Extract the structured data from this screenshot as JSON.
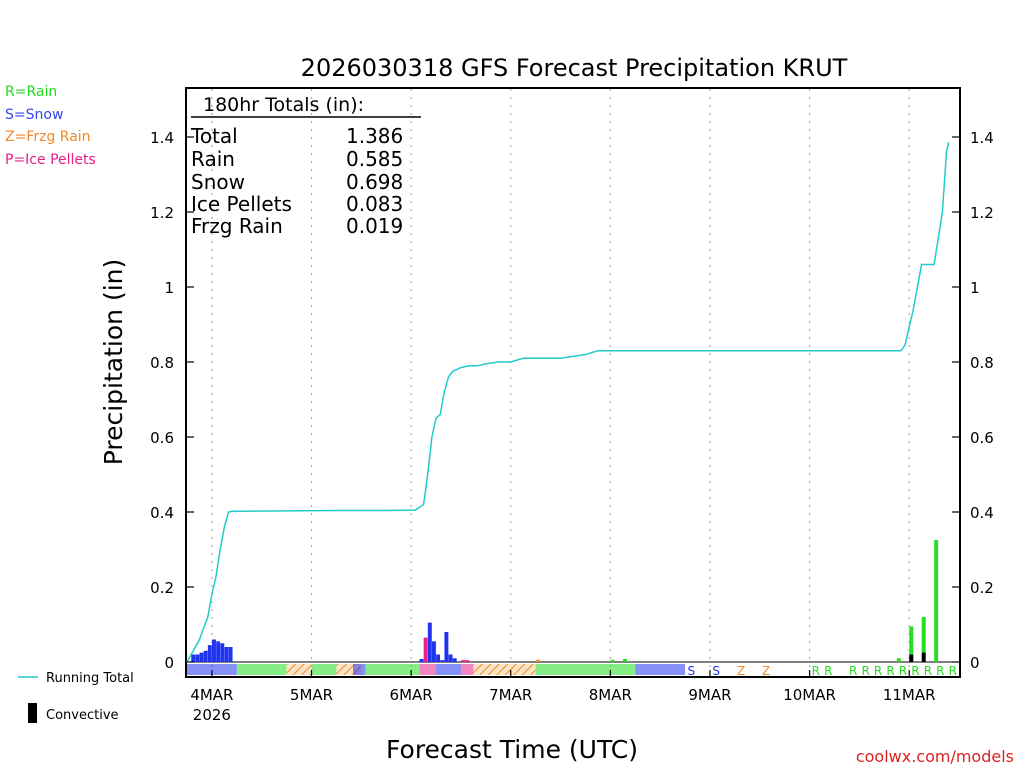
{
  "chart_data": {
    "type": "bar+line",
    "title": "2026030318 GFS Forecast Precipitation KRUT",
    "xlabel": "Forecast Time (UTC)",
    "ylabel": "Precipitation (in)",
    "ylim": [
      0,
      1.53
    ],
    "yticks": [
      0,
      0.2,
      0.4,
      0.6,
      0.8,
      1,
      1.2,
      1.4
    ],
    "ytick_labels": [
      "0",
      "0.2",
      "0.4",
      "0.6",
      "0.8",
      "1",
      "1.2",
      "1.4"
    ],
    "xlim_hours": [
      0,
      186
    ],
    "day_hours": [
      6,
      30,
      54,
      78,
      102,
      126,
      150,
      174
    ],
    "day_labels": [
      "4MAR",
      "5MAR",
      "6MAR",
      "7MAR",
      "8MAR",
      "9MAR",
      "10MAR",
      "11MAR"
    ],
    "year_label": "2026",
    "totals_box": {
      "header": "180hr Totals (in):",
      "rows": [
        {
          "label": "Total",
          "value": "1.386"
        },
        {
          "label": "Rain",
          "value": "0.585"
        },
        {
          "label": "Snow",
          "value": "0.698"
        },
        {
          "label": "Ice Pellets",
          "value": "0.083"
        },
        {
          "label": "Frzg Rain",
          "value": "0.019"
        }
      ]
    },
    "type_legend": [
      {
        "text": "R=Rain",
        "color": "#22dd22"
      },
      {
        "text": "S=Snow",
        "color": "#3344ee"
      },
      {
        "text": "Z=Frzg Rain",
        "color": "#f08a24"
      },
      {
        "text": "P=Ice Pellets",
        "color": "#e8208a"
      }
    ],
    "series_legend": {
      "running_total": "Running Total",
      "convective": "Convective"
    },
    "colors": {
      "rain": "#22dd22",
      "snow": "#2233ee",
      "frzg": "#f08a24",
      "pellets": "#e8208a",
      "total": "#22cccc",
      "convective": "#000000"
    },
    "running_total": {
      "hours": [
        0,
        1,
        2,
        3,
        4,
        5,
        6,
        7,
        8,
        9,
        10,
        11,
        12,
        24,
        36,
        48,
        55,
        57,
        58,
        59,
        60,
        61,
        62,
        63,
        64,
        66,
        68,
        70,
        72,
        75,
        78,
        81,
        84,
        90,
        96,
        99,
        102,
        105,
        150,
        172,
        173,
        175,
        177,
        180,
        182,
        183,
        183.5
      ],
      "values": [
        0.0,
        0.02,
        0.04,
        0.06,
        0.09,
        0.12,
        0.18,
        0.23,
        0.3,
        0.36,
        0.4,
        0.402,
        0.402,
        0.403,
        0.404,
        0.404,
        0.405,
        0.42,
        0.5,
        0.6,
        0.65,
        0.66,
        0.72,
        0.76,
        0.775,
        0.785,
        0.79,
        0.79,
        0.795,
        0.8,
        0.8,
        0.81,
        0.81,
        0.81,
        0.82,
        0.83,
        0.83,
        0.83,
        0.83,
        0.83,
        0.845,
        0.94,
        1.06,
        1.06,
        1.2,
        1.36,
        1.386
      ]
    },
    "bars": [
      {
        "hour": 1.5,
        "value": 0.02,
        "type": "snow"
      },
      {
        "hour": 2.5,
        "value": 0.02,
        "type": "snow"
      },
      {
        "hour": 3.5,
        "value": 0.025,
        "type": "snow"
      },
      {
        "hour": 4.5,
        "value": 0.03,
        "type": "snow"
      },
      {
        "hour": 5.5,
        "value": 0.045,
        "type": "snow"
      },
      {
        "hour": 6.5,
        "value": 0.06,
        "type": "snow"
      },
      {
        "hour": 7.5,
        "value": 0.055,
        "type": "snow"
      },
      {
        "hour": 8.5,
        "value": 0.05,
        "type": "snow"
      },
      {
        "hour": 9.5,
        "value": 0.04,
        "type": "snow"
      },
      {
        "hour": 10.5,
        "value": 0.04,
        "type": "snow"
      },
      {
        "hour": 56.5,
        "value": 0.008,
        "type": "snow"
      },
      {
        "hour": 57.5,
        "value": 0.065,
        "type": "pellets"
      },
      {
        "hour": 58.5,
        "value": 0.105,
        "type": "snow"
      },
      {
        "hour": 59.5,
        "value": 0.055,
        "type": "snow"
      },
      {
        "hour": 60.5,
        "value": 0.02,
        "type": "snow"
      },
      {
        "hour": 61.5,
        "value": 0.005,
        "type": "snow"
      },
      {
        "hour": 62.5,
        "value": 0.08,
        "type": "snow"
      },
      {
        "hour": 63.5,
        "value": 0.02,
        "type": "snow"
      },
      {
        "hour": 64.5,
        "value": 0.01,
        "type": "snow"
      },
      {
        "hour": 66.5,
        "value": 0.005,
        "type": "pellets"
      },
      {
        "hour": 67.5,
        "value": 0.005,
        "type": "pellets"
      },
      {
        "hour": 84.5,
        "value": 0.006,
        "type": "frzg"
      },
      {
        "hour": 102.5,
        "value": 0.006,
        "type": "rain"
      },
      {
        "hour": 105.5,
        "value": 0.008,
        "type": "rain"
      },
      {
        "hour": 171.5,
        "value": 0.01,
        "type": "rain"
      },
      {
        "hour": 174.5,
        "value": 0.095,
        "type": "rain"
      },
      {
        "hour": 177.5,
        "value": 0.12,
        "type": "rain"
      },
      {
        "hour": 180.5,
        "value": 0.325,
        "type": "rain"
      }
    ],
    "convective_bars": [
      {
        "hour": 174.5,
        "value": 0.02
      },
      {
        "hour": 177.5,
        "value": 0.025
      }
    ],
    "type_strip": [
      {
        "start": 0,
        "end": 12,
        "type": "snow"
      },
      {
        "start": 12,
        "end": 24,
        "type": "rain"
      },
      {
        "start": 24,
        "end": 30,
        "type": "frzg"
      },
      {
        "start": 30,
        "end": 36,
        "type": "rain"
      },
      {
        "start": 36,
        "end": 42,
        "type": "frzg"
      },
      {
        "start": 40,
        "end": 43,
        "type": "snow"
      },
      {
        "start": 43,
        "end": 56,
        "type": "rain"
      },
      {
        "start": 56,
        "end": 60,
        "type": "pellets"
      },
      {
        "start": 60,
        "end": 66,
        "type": "snow"
      },
      {
        "start": 66,
        "end": 69,
        "type": "pellets"
      },
      {
        "start": 69,
        "end": 84,
        "type": "frzg"
      },
      {
        "start": 84,
        "end": 108,
        "type": "rain"
      },
      {
        "start": 108,
        "end": 120,
        "type": "snow"
      }
    ],
    "type_letters": [
      {
        "hour": 121.5,
        "text": "S",
        "type": "snow"
      },
      {
        "hour": 127.5,
        "text": "S",
        "type": "snow"
      },
      {
        "hour": 133.5,
        "text": "Z",
        "type": "frzg"
      },
      {
        "hour": 139.5,
        "text": "Z",
        "type": "frzg"
      },
      {
        "hour": 151.5,
        "text": "R",
        "type": "rain"
      },
      {
        "hour": 154.5,
        "text": "R",
        "type": "rain"
      },
      {
        "hour": 160.5,
        "text": "R",
        "type": "rain"
      },
      {
        "hour": 163.5,
        "text": "R",
        "type": "rain"
      },
      {
        "hour": 166.5,
        "text": "R",
        "type": "rain"
      },
      {
        "hour": 169.5,
        "text": "R",
        "type": "rain"
      },
      {
        "hour": 172.5,
        "text": "R",
        "type": "rain"
      },
      {
        "hour": 175.5,
        "text": "R",
        "type": "rain"
      },
      {
        "hour": 178.5,
        "text": "R",
        "type": "rain"
      },
      {
        "hour": 181.5,
        "text": "R",
        "type": "rain"
      },
      {
        "hour": 184.5,
        "text": "R",
        "type": "rain"
      }
    ],
    "credit": "coolwx.com/models"
  }
}
